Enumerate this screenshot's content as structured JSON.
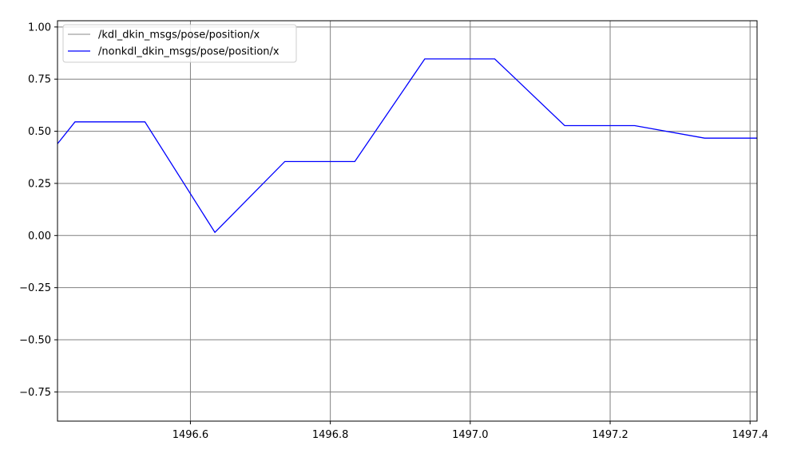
{
  "chart_data": {
    "type": "line",
    "title": "",
    "xlabel": "",
    "ylabel": "",
    "xlim": [
      1496.41,
      1497.41
    ],
    "ylim": [
      -0.89,
      1.03
    ],
    "grid": true,
    "grid_color": "#808080",
    "legend_location": "upper-left",
    "xticks": [
      {
        "value": 1496.6,
        "label": "1496.6"
      },
      {
        "value": 1496.8,
        "label": "1496.8"
      },
      {
        "value": 1497.0,
        "label": "1497.0"
      },
      {
        "value": 1497.2,
        "label": "1497.2"
      },
      {
        "value": 1497.4,
        "label": "1497.4"
      }
    ],
    "yticks": [
      {
        "value": 1.0,
        "label": "1.00"
      },
      {
        "value": 0.75,
        "label": "0.75"
      },
      {
        "value": 0.5,
        "label": "0.50"
      },
      {
        "value": 0.25,
        "label": "0.25"
      },
      {
        "value": 0.0,
        "label": "0.00"
      },
      {
        "value": -0.25,
        "label": "−0.25"
      },
      {
        "value": -0.5,
        "label": "−0.50"
      },
      {
        "value": -0.75,
        "label": "−0.75"
      }
    ],
    "series": [
      {
        "name": "/kdl_dkin_msgs/pose/position/x",
        "color": "#a0a0a0",
        "x": [],
        "y": []
      },
      {
        "name": "/nonkdl_dkin_msgs/pose/position/x",
        "color": "#0000ff",
        "x": [
          1496.41,
          1496.435,
          1496.535,
          1496.635,
          1496.735,
          1496.835,
          1496.935,
          1497.035,
          1497.135,
          1497.235,
          1497.335,
          1497.41
        ],
        "y": [
          0.44,
          0.545,
          0.545,
          0.015,
          0.355,
          0.355,
          0.847,
          0.847,
          0.527,
          0.527,
          0.467,
          0.467
        ]
      }
    ]
  }
}
